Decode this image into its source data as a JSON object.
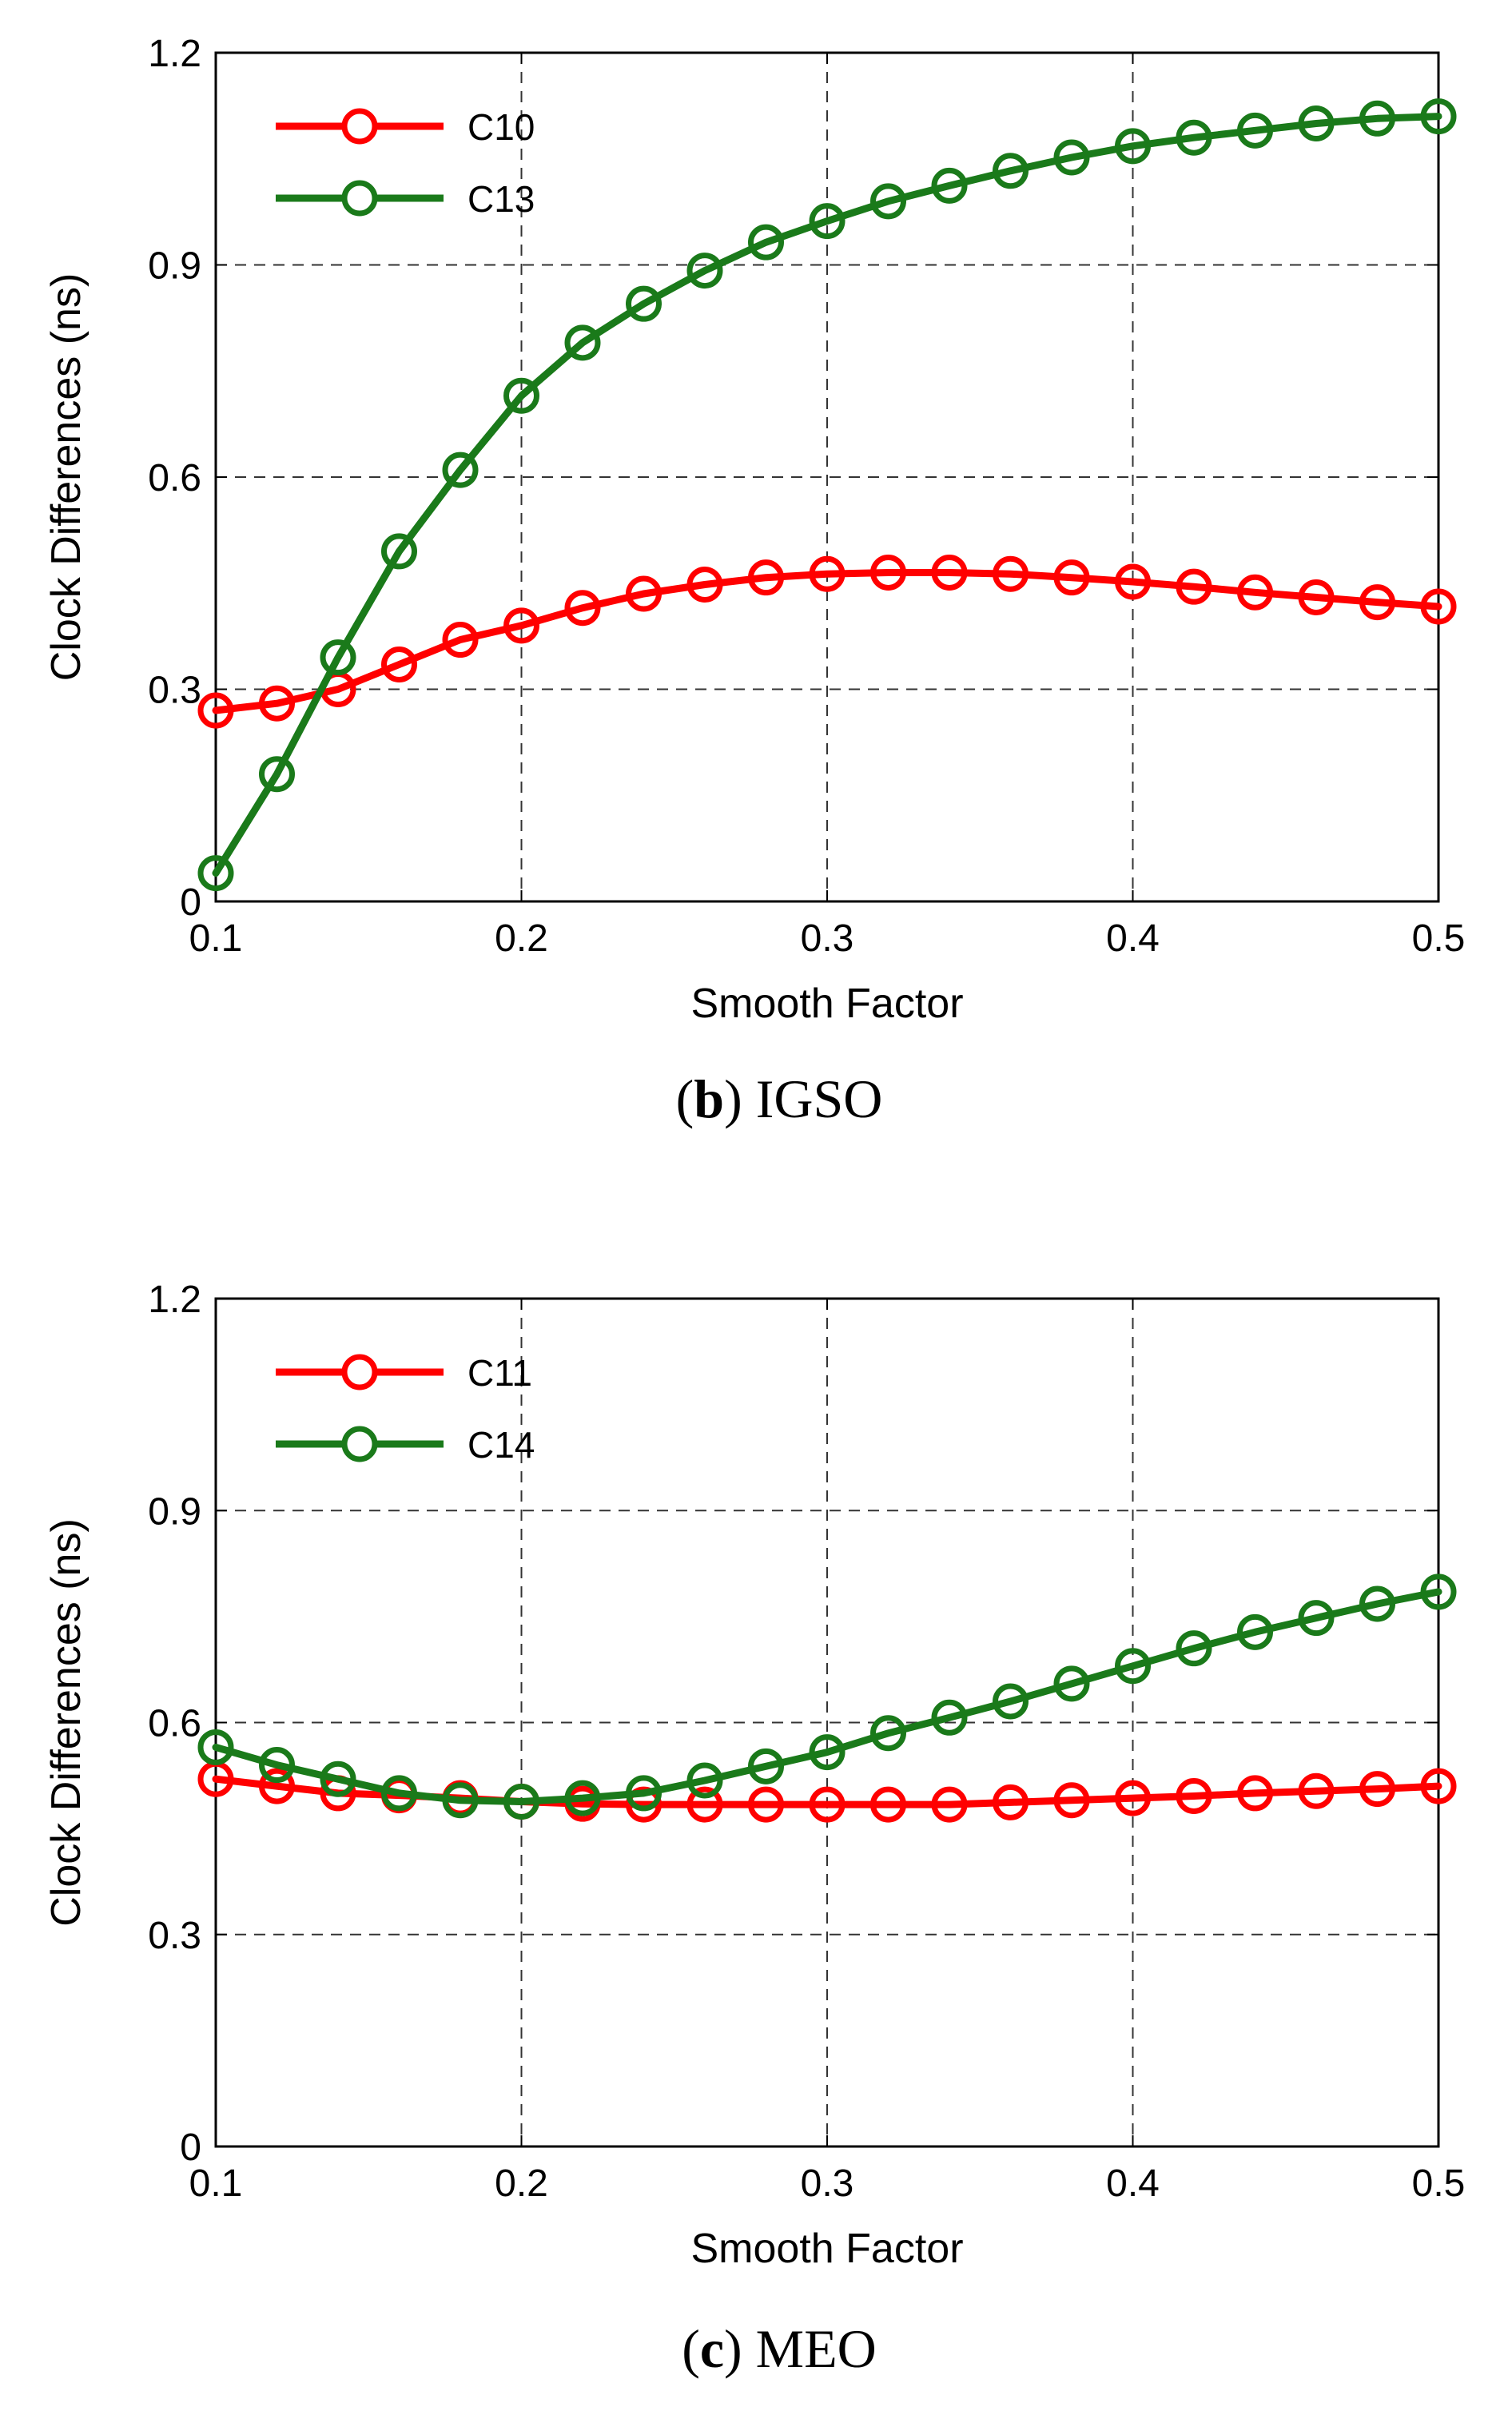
{
  "chart_data": [
    {
      "type": "line",
      "x": [
        0.1,
        0.12,
        0.14,
        0.16,
        0.18,
        0.2,
        0.22,
        0.24,
        0.26,
        0.28,
        0.3,
        0.32,
        0.34,
        0.36,
        0.38,
        0.4,
        0.42,
        0.44,
        0.46,
        0.48,
        0.5
      ],
      "series": [
        {
          "name": "C10",
          "color": "#ff0000",
          "values": [
            0.27,
            0.28,
            0.3,
            0.335,
            0.37,
            0.39,
            0.415,
            0.435,
            0.448,
            0.458,
            0.463,
            0.465,
            0.465,
            0.463,
            0.458,
            0.452,
            0.445,
            0.437,
            0.43,
            0.423,
            0.417
          ]
        },
        {
          "name": "C13",
          "color": "#1a7a1a",
          "values": [
            0.04,
            0.18,
            0.345,
            0.495,
            0.61,
            0.715,
            0.79,
            0.845,
            0.892,
            0.932,
            0.962,
            0.99,
            1.012,
            1.033,
            1.052,
            1.068,
            1.08,
            1.09,
            1.1,
            1.107,
            1.11
          ]
        }
      ],
      "xlim": [
        0.1,
        0.5
      ],
      "ylim": [
        0,
        1.2
      ],
      "x_ticks": [
        "0.1",
        "0.2",
        "0.3",
        "0.4",
        "0.5"
      ],
      "y_ticks": [
        "0",
        "0.3",
        "0.6",
        "0.9",
        "1.2"
      ],
      "xlabel": "Smooth Factor",
      "ylabel": "Clock Differences (ns)",
      "grid": true,
      "legend_position": "top-left",
      "caption_letter": "b",
      "caption_text": " IGSO"
    },
    {
      "type": "line",
      "x": [
        0.1,
        0.12,
        0.14,
        0.16,
        0.18,
        0.2,
        0.22,
        0.24,
        0.26,
        0.28,
        0.3,
        0.32,
        0.34,
        0.36,
        0.38,
        0.4,
        0.42,
        0.44,
        0.46,
        0.48,
        0.5
      ],
      "series": [
        {
          "name": "C11",
          "color": "#ff0000",
          "values": [
            0.52,
            0.51,
            0.5,
            0.497,
            0.493,
            0.488,
            0.485,
            0.484,
            0.484,
            0.484,
            0.484,
            0.484,
            0.484,
            0.487,
            0.49,
            0.493,
            0.496,
            0.5,
            0.503,
            0.506,
            0.51
          ]
        },
        {
          "name": "C14",
          "color": "#1a7a1a",
          "values": [
            0.565,
            0.54,
            0.52,
            0.5,
            0.49,
            0.488,
            0.493,
            0.5,
            0.518,
            0.538,
            0.558,
            0.585,
            0.607,
            0.63,
            0.655,
            0.68,
            0.705,
            0.728,
            0.748,
            0.768,
            0.785
          ]
        }
      ],
      "xlim": [
        0.1,
        0.5
      ],
      "ylim": [
        0,
        1.2
      ],
      "x_ticks": [
        "0.1",
        "0.2",
        "0.3",
        "0.4",
        "0.5"
      ],
      "y_ticks": [
        "0",
        "0.3",
        "0.6",
        "0.9",
        "1.2"
      ],
      "xlabel": "Smooth Factor",
      "ylabel": "Clock Differences (ns)",
      "grid": true,
      "legend_position": "top-left",
      "caption_letter": "c",
      "caption_text": " MEO"
    }
  ]
}
